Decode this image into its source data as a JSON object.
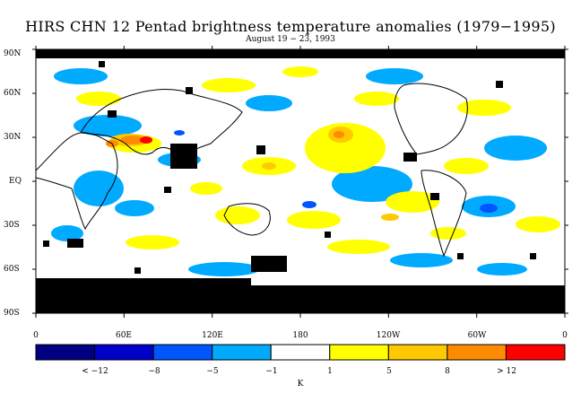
{
  "title": "HIRS CHN 12 Pentad brightness temperature anomalies (1979−1995)",
  "subtitle": "August 19 − 23, 1993",
  "lat_labels": [
    "90N",
    "60N",
    "30N",
    "EQ",
    "30S",
    "60S",
    "90S"
  ],
  "lon_labels": [
    "0",
    "60E",
    "120E",
    "180",
    "120W",
    "60W",
    "0"
  ],
  "legend": {
    "colors": [
      "#000080",
      "#0000c8",
      "#0055ff",
      "#00aaff",
      "#ffffff",
      "#ffff00",
      "#ffc800",
      "#ff8c00",
      "#ff0000"
    ],
    "boundary_labels": [
      "< −12",
      "−8",
      "−5",
      "−1",
      "1",
      "5",
      "8",
      "> 12"
    ],
    "unit": "K"
  },
  "palette": {
    "cool_light": "#00aaff",
    "cool_mid": "#0055ff",
    "warm_light": "#ffff00",
    "warm_mid": "#ffc800",
    "warm_strong": "#ff8c00",
    "hot": "#ff0000",
    "missing": "#000000"
  }
}
